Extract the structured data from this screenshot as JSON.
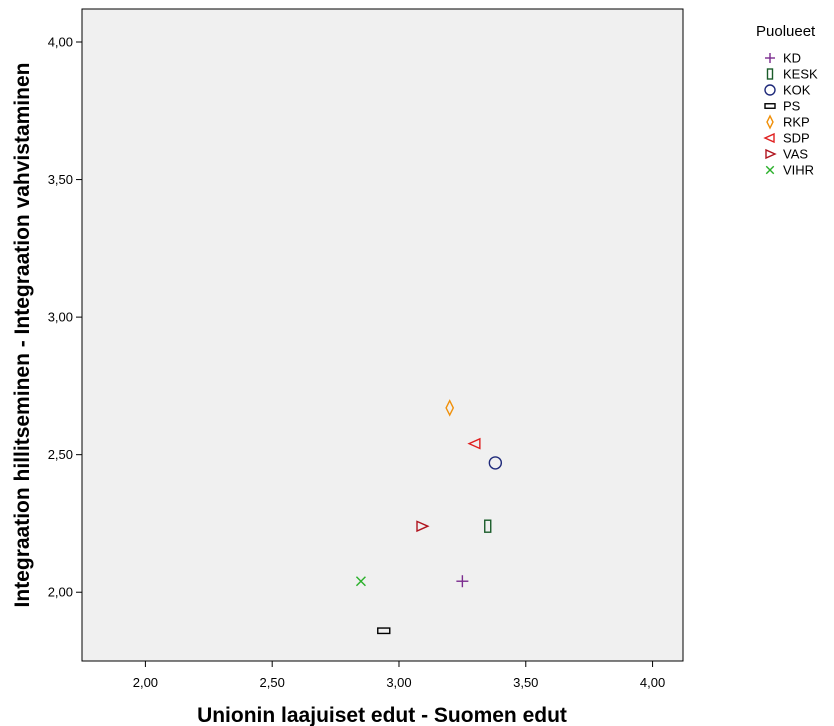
{
  "chart_data": {
    "type": "scatter",
    "xlabel": "Unionin laajuiset edut - Suomen edut",
    "ylabel": "Integraation hillitseminen - Integraation vahvistaminen",
    "xlim": [
      1.75,
      4.12
    ],
    "ylim": [
      1.75,
      4.12
    ],
    "x_ticks": [
      2.0,
      2.5,
      3.0,
      3.5,
      4.0
    ],
    "x_tick_labels": [
      "2,00",
      "2,50",
      "3,00",
      "3,50",
      "4,00"
    ],
    "y_ticks": [
      2.0,
      2.5,
      3.0,
      3.5,
      4.0
    ],
    "y_tick_labels": [
      "2,00",
      "2,50",
      "3,00",
      "3,50",
      "4,00"
    ],
    "grid": false,
    "plot_background": "#f0f0f0",
    "legend": {
      "title": "Puolueet",
      "placement": "right"
    },
    "series": [
      {
        "name": "KD",
        "marker": "plus",
        "color": "#7b2b8e",
        "x": 3.25,
        "y": 2.04
      },
      {
        "name": "KESK",
        "marker": "tall-rect",
        "color": "#1a5c2a",
        "x": 3.35,
        "y": 2.24
      },
      {
        "name": "KOK",
        "marker": "circle",
        "color": "#1f2a7a",
        "x": 3.38,
        "y": 2.47
      },
      {
        "name": "PS",
        "marker": "wide-rect",
        "color": "#000000",
        "x": 2.94,
        "y": 1.86
      },
      {
        "name": "RKP",
        "marker": "diamond",
        "color": "#f0900a",
        "x": 3.2,
        "y": 2.67
      },
      {
        "name": "SDP",
        "marker": "triangle-left",
        "color": "#e02020",
        "x": 3.3,
        "y": 2.54
      },
      {
        "name": "VAS",
        "marker": "triangle-right",
        "color": "#b0141e",
        "x": 3.09,
        "y": 2.24
      },
      {
        "name": "VIHR",
        "marker": "x",
        "color": "#2ab02a",
        "x": 2.85,
        "y": 2.04
      }
    ]
  }
}
